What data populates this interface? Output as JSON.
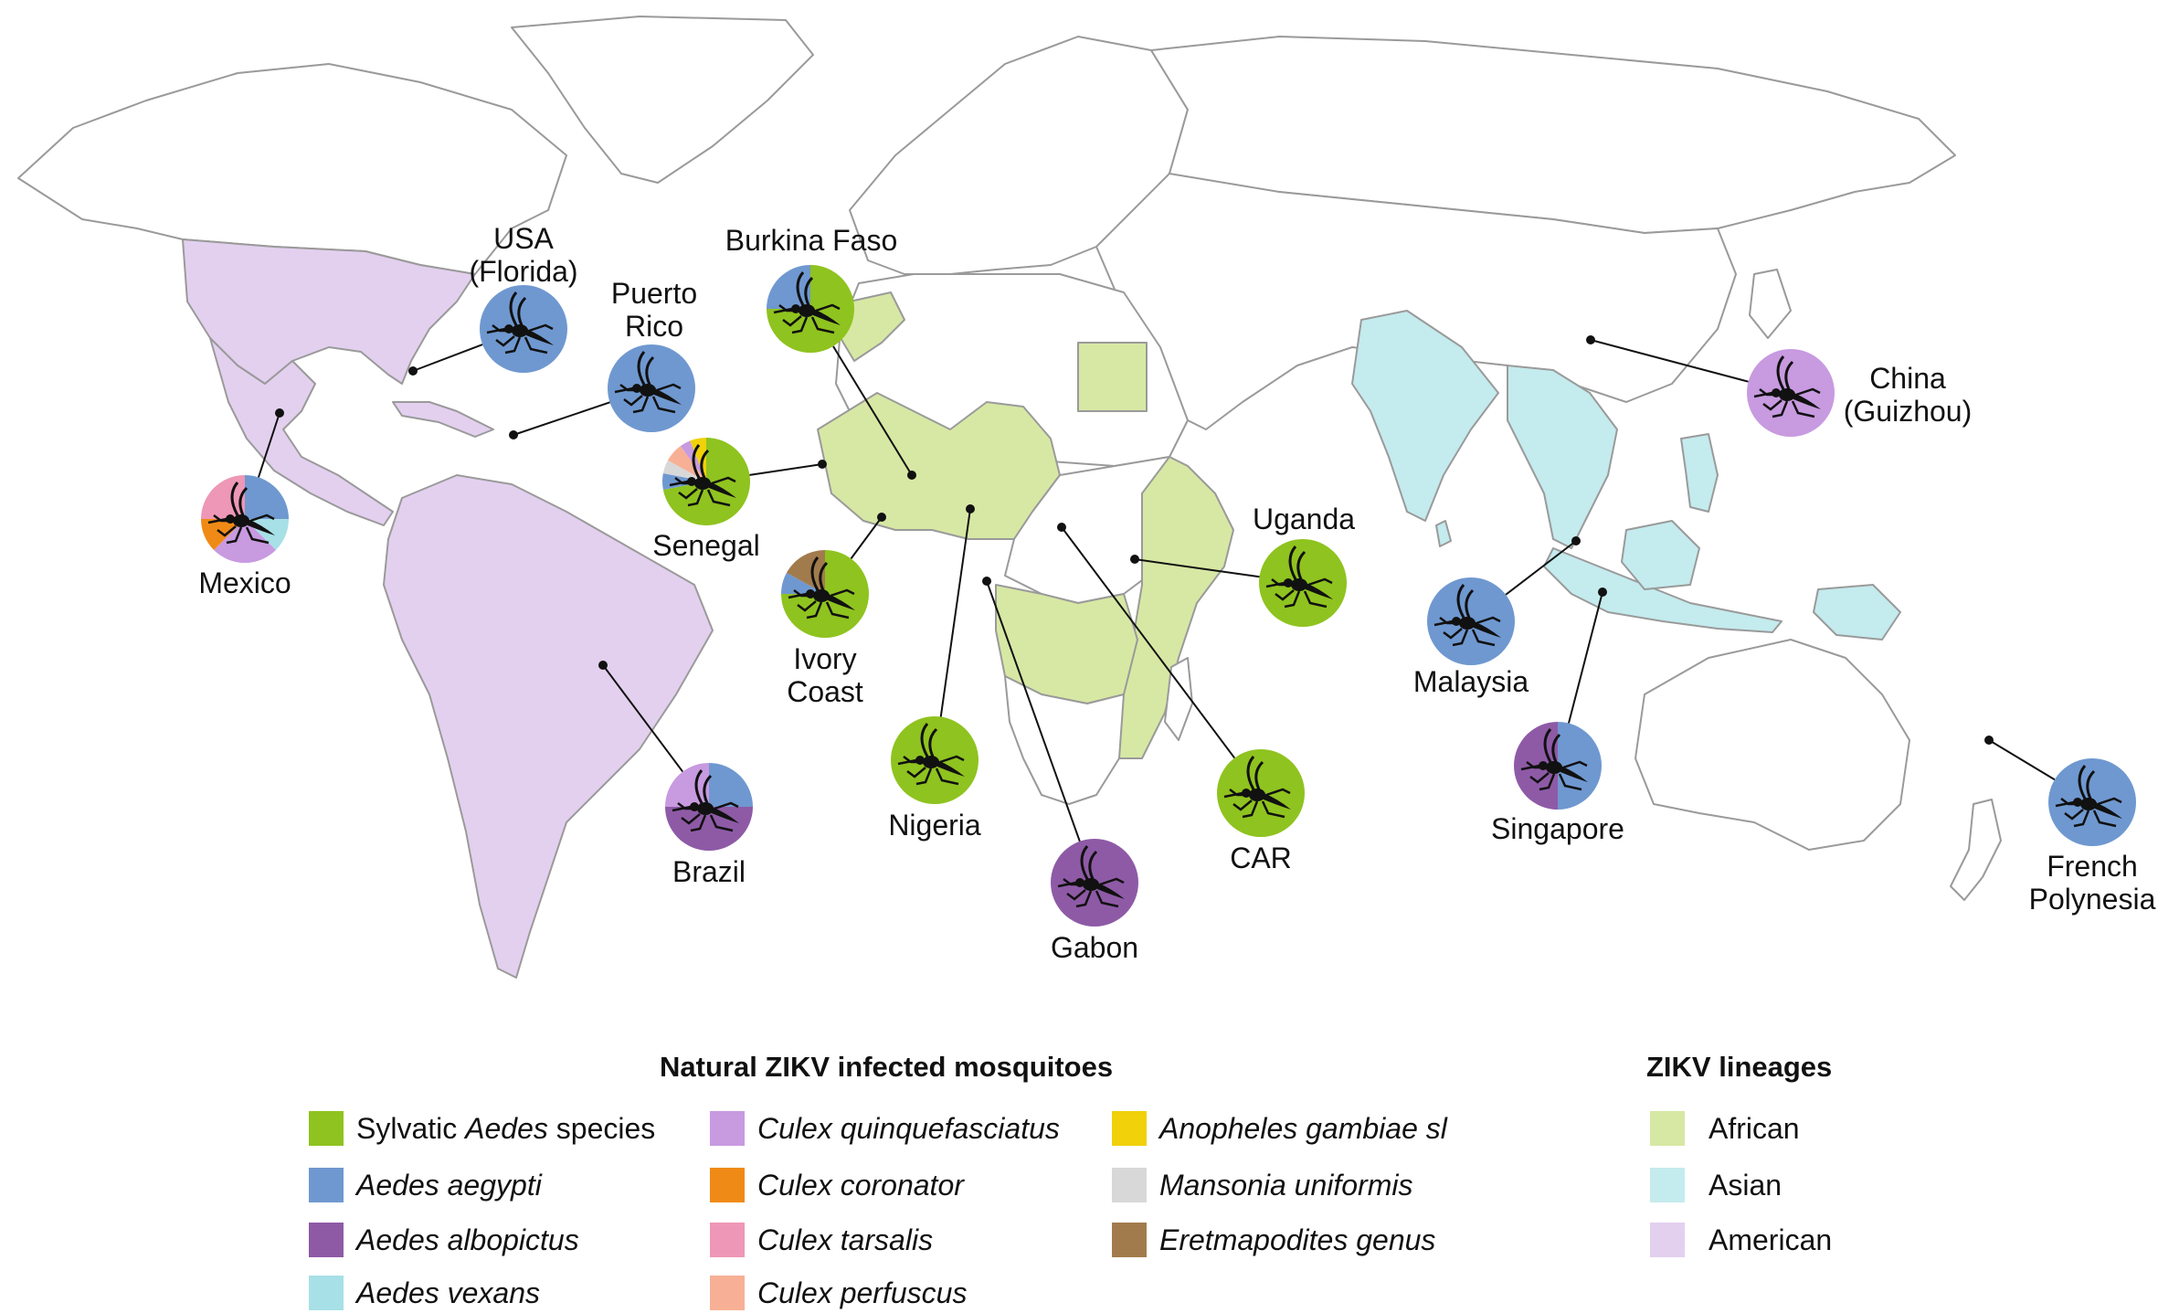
{
  "colors": {
    "sylvatic_aedes": "#8fc31f",
    "aedes_aegypti": "#6f98d0",
    "aedes_albopictus": "#8e5aa6",
    "aedes_vexans": "#a7e0e6",
    "culex_quinquefasciatus": "#c89ae0",
    "culex_coronator": "#f08a16",
    "culex_tarsalis": "#ee97b6",
    "culex_perfuscus": "#f7b095",
    "anopheles_gambiae": "#f0d10a",
    "mansonia_uniformis": "#d8d8d8",
    "eretmapodites": "#a27b4d",
    "lineage_african": "#d7e8a4",
    "lineage_asian": "#c4ebee",
    "lineage_american": "#e3d0ef",
    "land_white": "#ffffff",
    "border": "#9a9a9a",
    "mosquito": "#111111"
  },
  "map": {
    "locations": [
      {
        "id": "usa-florida",
        "label": "USA\n(Florida)",
        "slices": [
          {
            "species": "aedes_aegypti",
            "fraction": 1.0
          }
        ]
      },
      {
        "id": "puerto-rico",
        "label": "Puerto\nRico",
        "slices": [
          {
            "species": "aedes_aegypti",
            "fraction": 1.0
          }
        ]
      },
      {
        "id": "mexico",
        "label": "Mexico",
        "slices": [
          {
            "species": "aedes_aegypti",
            "fraction": 0.25
          },
          {
            "species": "aedes_vexans",
            "fraction": 0.125
          },
          {
            "species": "culex_quinquefasciatus",
            "fraction": 0.25
          },
          {
            "species": "culex_coronator",
            "fraction": 0.125
          },
          {
            "species": "culex_tarsalis",
            "fraction": 0.25
          }
        ]
      },
      {
        "id": "brazil",
        "label": "Brazil",
        "slices": [
          {
            "species": "aedes_aegypti",
            "fraction": 0.25
          },
          {
            "species": "aedes_albopictus",
            "fraction": 0.5
          },
          {
            "species": "culex_quinquefasciatus",
            "fraction": 0.25
          }
        ]
      },
      {
        "id": "burkina-faso",
        "label": "Burkina Faso",
        "slices": [
          {
            "species": "sylvatic_aedes",
            "fraction": 0.75
          },
          {
            "species": "aedes_aegypti",
            "fraction": 0.25
          }
        ]
      },
      {
        "id": "senegal",
        "label": "Senegal",
        "slices": [
          {
            "species": "sylvatic_aedes",
            "fraction": 0.72
          },
          {
            "species": "aedes_aegypti",
            "fraction": 0.06
          },
          {
            "species": "mansonia_uniformis",
            "fraction": 0.05
          },
          {
            "species": "culex_perfuscus",
            "fraction": 0.07
          },
          {
            "species": "culex_quinquefasciatus",
            "fraction": 0.04
          },
          {
            "species": "anopheles_gambiae",
            "fraction": 0.06
          }
        ]
      },
      {
        "id": "ivory-coast",
        "label": "Ivory\nCoast",
        "slices": [
          {
            "species": "sylvatic_aedes",
            "fraction": 0.75
          },
          {
            "species": "aedes_aegypti",
            "fraction": 0.08
          },
          {
            "species": "eretmapodites",
            "fraction": 0.17
          }
        ]
      },
      {
        "id": "nigeria",
        "label": "Nigeria",
        "slices": [
          {
            "species": "sylvatic_aedes",
            "fraction": 1.0
          }
        ]
      },
      {
        "id": "gabon",
        "label": "Gabon",
        "slices": [
          {
            "species": "aedes_albopictus",
            "fraction": 1.0
          }
        ]
      },
      {
        "id": "car",
        "label": "CAR",
        "slices": [
          {
            "species": "sylvatic_aedes",
            "fraction": 1.0
          }
        ]
      },
      {
        "id": "uganda",
        "label": "Uganda",
        "slices": [
          {
            "species": "sylvatic_aedes",
            "fraction": 1.0
          }
        ]
      },
      {
        "id": "china-guizhou",
        "label": "China\n(Guizhou)",
        "slices": [
          {
            "species": "culex_quinquefasciatus",
            "fraction": 1.0
          }
        ]
      },
      {
        "id": "malaysia",
        "label": "Malaysia",
        "slices": [
          {
            "species": "aedes_aegypti",
            "fraction": 1.0
          }
        ]
      },
      {
        "id": "singapore",
        "label": "Singapore",
        "slices": [
          {
            "species": "aedes_aegypti",
            "fraction": 0.5
          },
          {
            "species": "aedes_albopictus",
            "fraction": 0.5
          }
        ]
      },
      {
        "id": "french-polynesia",
        "label": "French\nPolynesia",
        "slices": [
          {
            "species": "aedes_aegypti",
            "fraction": 1.0
          }
        ]
      }
    ]
  },
  "legend": {
    "mosquitoes_title": "Natural ZIKV infected mosquitoes",
    "sylvatic_prefix": "Sylvatic ",
    "sylvatic_genus": "Aedes",
    "sylvatic_suffix": " species",
    "aedes_aegypti": "Aedes aegypti",
    "aedes_albopictus": "Aedes albopictus",
    "aedes_vexans": "Aedes vexans",
    "culex_quinquefasciatus": "Culex quinquefasciatus",
    "culex_coronator": "Culex coronator",
    "culex_tarsalis": "Culex tarsalis",
    "culex_perfuscus": "Culex perfuscus",
    "anopheles_gambiae": "Anopheles gambiae sl",
    "mansonia_uniformis": "Mansonia uniformis",
    "eretmapodites": "Eretmapodites genus",
    "lineages_title": "ZIKV lineages",
    "lineage_african": "African",
    "lineage_asian": "Asian",
    "lineage_american": "American"
  }
}
